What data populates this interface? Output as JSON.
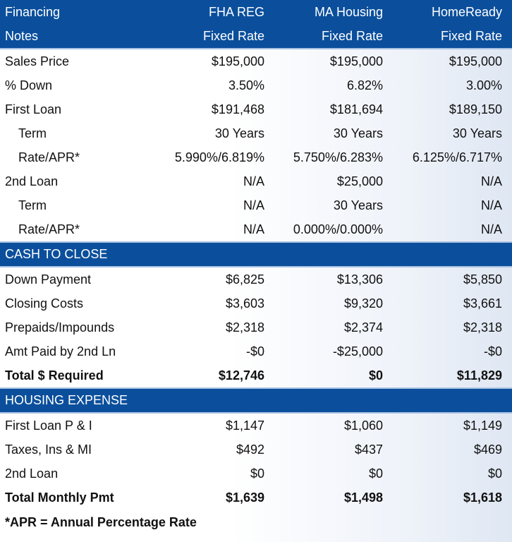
{
  "header": {
    "row1": [
      "Financing",
      "FHA REG",
      "MA Housing",
      "HomeReady"
    ],
    "row2": [
      "Notes",
      "Fixed Rate",
      "Fixed Rate",
      "Fixed Rate"
    ]
  },
  "financing_rows": [
    {
      "label": "Sales Price",
      "indent": false,
      "values": [
        "$195,000",
        "$195,000",
        "$195,000"
      ]
    },
    {
      "label": "% Down",
      "indent": false,
      "values": [
        "3.50%",
        "6.82%",
        "3.00%"
      ]
    },
    {
      "label": "First Loan",
      "indent": false,
      "values": [
        "$191,468",
        "$181,694",
        "$189,150"
      ]
    },
    {
      "label": "Term",
      "indent": true,
      "values": [
        "30 Years",
        "30 Years",
        "30 Years"
      ]
    },
    {
      "label": "Rate/APR*",
      "indent": true,
      "values": [
        "5.990%/6.819%",
        "5.750%/6.283%",
        "6.125%/6.717%"
      ]
    },
    {
      "label": "2nd Loan",
      "indent": false,
      "values": [
        "N/A",
        "$25,000",
        "N/A"
      ]
    },
    {
      "label": "Term",
      "indent": true,
      "values": [
        "N/A",
        "30 Years",
        "N/A"
      ]
    },
    {
      "label": "Rate/APR*",
      "indent": true,
      "values": [
        "N/A",
        "0.000%/0.000%",
        "N/A"
      ]
    }
  ],
  "cash_to_close": {
    "title": "CASH TO CLOSE",
    "rows": [
      {
        "label": "Down Payment",
        "values": [
          "$6,825",
          "$13,306",
          "$5,850"
        ]
      },
      {
        "label": "Closing Costs",
        "values": [
          "$3,603",
          "$9,320",
          "$3,661"
        ]
      },
      {
        "label": "Prepaids/Impounds",
        "values": [
          "$2,318",
          "$2,374",
          "$2,318"
        ]
      },
      {
        "label": "Amt Paid by 2nd Ln",
        "values": [
          "-$0",
          "-$25,000",
          "-$0"
        ]
      },
      {
        "label": "Total $ Required",
        "values": [
          "$12,746",
          "$0",
          "$11,829"
        ]
      }
    ]
  },
  "housing_expense": {
    "title": "HOUSING EXPENSE",
    "rows": [
      {
        "label": "First Loan P & I",
        "values": [
          "$1,147",
          "$1,060",
          "$1,149"
        ]
      },
      {
        "label": "Taxes, Ins & MI",
        "values": [
          "$492",
          "$437",
          "$469"
        ]
      },
      {
        "label": "2nd Loan",
        "values": [
          "$0",
          "$0",
          "$0"
        ]
      },
      {
        "label": "Total Monthly Pmt",
        "values": [
          "$1,639",
          "$1,498",
          "$1,618"
        ]
      }
    ]
  },
  "footnote": "*APR = Annual Percentage Rate"
}
